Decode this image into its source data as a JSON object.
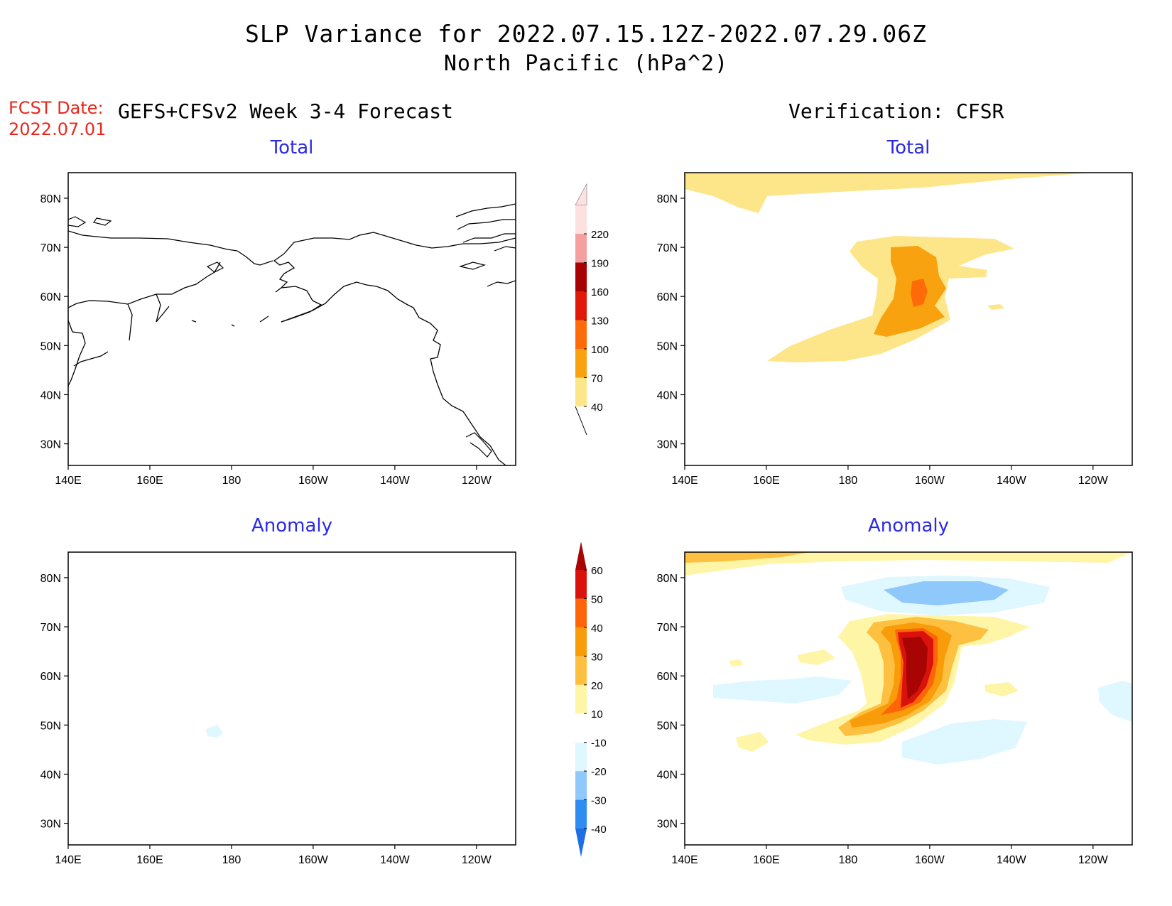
{
  "title_line1": "SLP Variance for 2022.07.15.12Z-2022.07.29.06Z",
  "title_line2": "North Pacific (hPa^2)",
  "fcst_date_label": "FCST Date:",
  "fcst_date_value": "2022.07.01",
  "left_column_title": "GEFS+CFSv2 Week 3-4 Forecast",
  "right_column_title": "Verification: CFSR",
  "panels": [
    {
      "id": "forecast-total",
      "label": "Total"
    },
    {
      "id": "verification-total",
      "label": "Total"
    },
    {
      "id": "forecast-anomaly",
      "label": "Anomaly"
    },
    {
      "id": "verification-anomaly",
      "label": "Anomaly"
    }
  ],
  "lat_ticks": [
    "80N",
    "70N",
    "60N",
    "50N",
    "40N",
    "30N"
  ],
  "lon_ticks": [
    "140E",
    "160E",
    "180",
    "160W",
    "140W",
    "120W"
  ],
  "total_colorbar": {
    "levels": [
      "40",
      "70",
      "100",
      "130",
      "160",
      "190",
      "220"
    ],
    "colors": [
      "#fde68a",
      "#f9a20f",
      "#ff6b08",
      "#e0190a",
      "#a80202",
      "#f4a0a0",
      "#fde0e0"
    ]
  },
  "anomaly_colorbar": {
    "levels": [
      "-40",
      "-30",
      "-20",
      "-10",
      "10",
      "20",
      "30",
      "40",
      "50",
      "60"
    ],
    "colors": [
      "#1e6ee6",
      "#2f8cf0",
      "#8fc8fa",
      "#dff7fe",
      "#ffffff",
      "#fff5a6",
      "#fdc040",
      "#f99c0a",
      "#ff6408",
      "#d9130b",
      "#a80404"
    ]
  },
  "colors": {
    "title_red": "#e8281e",
    "panel_label_blue": "#2a2ae6"
  }
}
